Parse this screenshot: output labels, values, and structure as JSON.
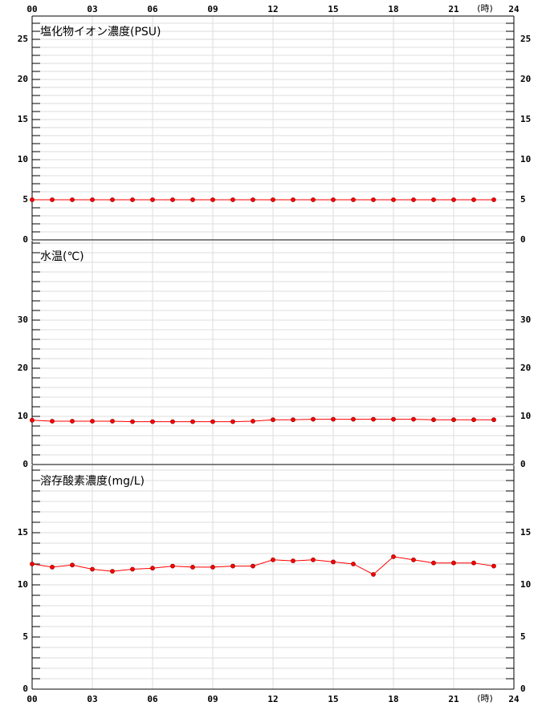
{
  "chart_data": [
    {
      "type": "line",
      "title": "塩化物イオン濃度(PSU)",
      "xlabel": "(時)",
      "x": [
        0,
        1,
        2,
        3,
        4,
        5,
        6,
        7,
        8,
        9,
        10,
        11,
        12,
        13,
        14,
        15,
        16,
        17,
        18,
        19,
        20,
        21,
        22,
        23
      ],
      "values": [
        5,
        5,
        5,
        5,
        5,
        5,
        5,
        5,
        5,
        5,
        5,
        5,
        5,
        5,
        5,
        5,
        5,
        5,
        5,
        5,
        5,
        5,
        5,
        5
      ],
      "color": "#ff0000",
      "xlim": [
        0,
        24
      ],
      "xticks": [
        {
          "value": 0,
          "label": "00"
        },
        {
          "value": 3,
          "label": "03"
        },
        {
          "value": 6,
          "label": "06"
        },
        {
          "value": 9,
          "label": "09"
        },
        12,
        15,
        18,
        21,
        24
      ],
      "ylim": [
        0,
        27.9
      ],
      "yticks": [
        0,
        5,
        10,
        15,
        20,
        25
      ],
      "minor_step": 1,
      "grid": true
    },
    {
      "type": "line",
      "title": "水温(℃)",
      "x": [
        0,
        1,
        2,
        3,
        4,
        5,
        6,
        7,
        8,
        9,
        10,
        11,
        12,
        13,
        14,
        15,
        16,
        17,
        18,
        19,
        20,
        21,
        22,
        23
      ],
      "values": [
        9.2,
        9.0,
        9.0,
        9.0,
        9.0,
        8.9,
        8.9,
        8.9,
        8.9,
        8.9,
        8.9,
        9.0,
        9.3,
        9.3,
        9.4,
        9.4,
        9.4,
        9.4,
        9.4,
        9.4,
        9.3,
        9.3,
        9.3,
        9.3
      ],
      "color": "#ff0000",
      "xlim": [
        0,
        24
      ],
      "xticks": [
        0,
        3,
        6,
        9,
        12,
        15,
        18,
        21,
        24
      ],
      "ylim": [
        0,
        46.5
      ],
      "yticks": [
        0,
        10,
        20,
        30
      ],
      "minor_step": 2,
      "grid": true
    },
    {
      "type": "line",
      "title": "溶存酸素濃度(mg/L)",
      "xlabel": "(時)",
      "x": [
        0,
        1,
        2,
        3,
        4,
        5,
        6,
        7,
        8,
        9,
        10,
        11,
        12,
        13,
        14,
        15,
        16,
        17,
        18,
        19,
        20,
        21,
        22,
        23
      ],
      "values": [
        12.0,
        11.7,
        11.9,
        11.5,
        11.3,
        11.5,
        11.6,
        11.8,
        11.7,
        11.7,
        11.8,
        11.8,
        12.4,
        12.3,
        12.4,
        12.2,
        12.0,
        11.0,
        12.7,
        12.4,
        12.1,
        12.1,
        12.1,
        11.8
      ],
      "color": "#ff0000",
      "xlim": [
        0,
        24
      ],
      "xticks": [
        {
          "value": 0,
          "label": "00"
        },
        {
          "value": 3,
          "label": "03"
        },
        {
          "value": 6,
          "label": "06"
        },
        {
          "value": 9,
          "label": "09"
        },
        12,
        15,
        18,
        21,
        24
      ],
      "ylim": [
        0,
        21.46
      ],
      "yticks": [
        0,
        5,
        10,
        15
      ],
      "minor_step": 1,
      "grid": true
    }
  ]
}
